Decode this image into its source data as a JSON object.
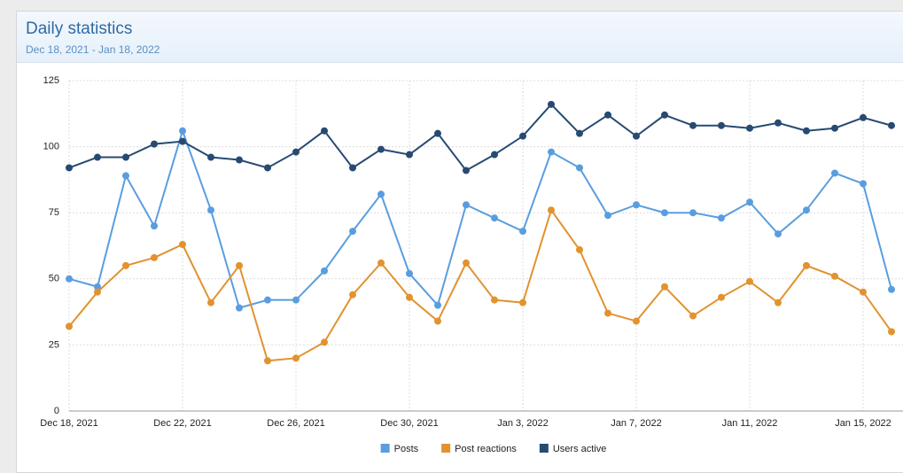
{
  "chart_data": {
    "type": "line",
    "title": "Daily statistics",
    "subtitle": "Dec 18, 2021 - Jan 18, 2022",
    "categories": [
      "Dec 18, 2021",
      null,
      null,
      null,
      "Dec 22, 2021",
      null,
      null,
      null,
      "Dec 26, 2021",
      null,
      null,
      null,
      "Dec 30, 2021",
      null,
      null,
      null,
      "Jan 3, 2022",
      null,
      null,
      null,
      "Jan 7, 2022",
      null,
      null,
      null,
      "Jan 11, 2022",
      null,
      null,
      null,
      "Jan 15, 2022",
      null
    ],
    "series": [
      {
        "name": "Posts",
        "color": "#5a9ddf",
        "values": [
          50,
          47,
          89,
          70,
          106,
          76,
          39,
          42,
          42,
          53,
          68,
          82,
          52,
          40,
          78,
          73,
          68,
          98,
          92,
          74,
          78,
          75,
          75,
          73,
          79,
          67,
          76,
          90,
          86,
          46
        ]
      },
      {
        "name": "Post reactions",
        "color": "#e2922f",
        "values": [
          32,
          45,
          55,
          58,
          63,
          41,
          55,
          19,
          20,
          26,
          44,
          56,
          43,
          34,
          56,
          42,
          41,
          76,
          61,
          37,
          34,
          47,
          36,
          43,
          49,
          41,
          55,
          51,
          45,
          30
        ]
      },
      {
        "name": "Users active",
        "color": "#274a72",
        "values": [
          92,
          96,
          96,
          101,
          102,
          96,
          95,
          92,
          98,
          106,
          92,
          99,
          97,
          105,
          91,
          97,
          104,
          116,
          105,
          112,
          104,
          112,
          108,
          108,
          107,
          109,
          106,
          107,
          111,
          108
        ]
      }
    ],
    "ylim": [
      0,
      125
    ],
    "yticks": [
      0,
      25,
      50,
      75,
      100,
      125
    ],
    "grid": true,
    "legend": "bottom"
  }
}
